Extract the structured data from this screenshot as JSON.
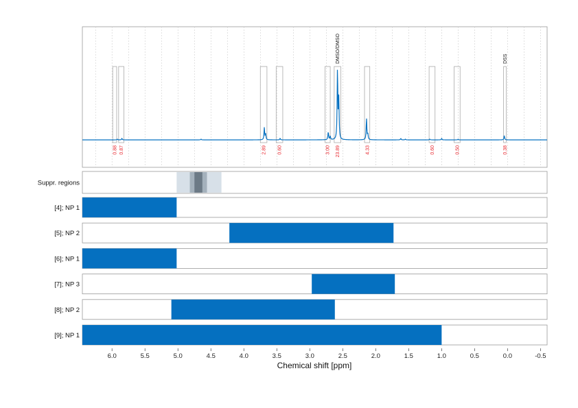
{
  "chart_data": {
    "type": "spectrum",
    "xlabel": "Chemical shift [ppm]",
    "xlim": [
      6.45,
      -0.6
    ],
    "x_ticks": [
      "6.0",
      "5.5",
      "5.0",
      "4.5",
      "4.0",
      "3.5",
      "3.0",
      "2.5",
      "2.0",
      "1.5",
      "1.0",
      "0.5",
      "0.0",
      "-0.5"
    ],
    "x_tick_values": [
      6.0,
      5.5,
      5.0,
      4.5,
      4.0,
      3.5,
      3.0,
      2.5,
      2.0,
      1.5,
      1.0,
      0.5,
      0.0,
      -0.5
    ],
    "spectrum": {
      "peaks": [
        {
          "ppm": 5.92,
          "height": 0.01
        },
        {
          "ppm": 5.85,
          "height": 0.02
        },
        {
          "ppm": 4.65,
          "height": 0.01
        },
        {
          "ppm": 3.69,
          "height": 0.17
        },
        {
          "ppm": 3.67,
          "height": 0.08
        },
        {
          "ppm": 3.45,
          "height": 0.02
        },
        {
          "ppm": 2.72,
          "height": 0.11
        },
        {
          "ppm": 2.69,
          "height": 0.05
        },
        {
          "ppm": 2.58,
          "height": 0.98
        },
        {
          "ppm": 2.56,
          "height": 0.55
        },
        {
          "ppm": 2.14,
          "height": 0.3
        },
        {
          "ppm": 2.12,
          "height": 0.08
        },
        {
          "ppm": 1.62,
          "height": 0.02
        },
        {
          "ppm": 1.55,
          "height": 0.01
        },
        {
          "ppm": 1.18,
          "height": 0.01
        },
        {
          "ppm": 1.0,
          "height": 0.02
        },
        {
          "ppm": 0.75,
          "height": 0.01
        },
        {
          "ppm": 0.05,
          "height": 0.06
        }
      ]
    },
    "boxes": [
      {
        "from": 5.99,
        "to": 5.93,
        "label": "0.88"
      },
      {
        "from": 5.9,
        "to": 5.82,
        "label": "0.87"
      },
      {
        "from": 3.75,
        "to": 3.65,
        "label": "2.89"
      },
      {
        "from": 3.51,
        "to": 3.41,
        "label": "0.60"
      },
      {
        "from": 2.77,
        "to": 2.69,
        "label": "3.00"
      },
      {
        "from": 2.63,
        "to": 2.53,
        "label": "23.89",
        "top_label": "DMSO/DMSO"
      },
      {
        "from": 2.17,
        "to": 2.09,
        "label": "4.33"
      },
      {
        "from": 1.19,
        "to": 1.1,
        "label": "0.60"
      },
      {
        "from": 0.81,
        "to": 0.72,
        "label": "0.50"
      },
      {
        "from": 0.06,
        "to": 0.02,
        "label": "0.38",
        "top_label": "DSS"
      }
    ],
    "suppression": {
      "label": "Suppr. regions",
      "regions": [
        {
          "from": 5.02,
          "to": 4.34,
          "shade": "#d7e0e8"
        },
        {
          "from": 4.82,
          "to": 4.56,
          "shade": "#a4b1bc"
        },
        {
          "from": 4.75,
          "to": 4.63,
          "shade": "#6c7a86"
        }
      ]
    },
    "tracks": [
      {
        "label": "[4]; NP 1",
        "from": 6.45,
        "to": 5.02
      },
      {
        "label": "[5]; NP 2",
        "from": 4.22,
        "to": 1.73
      },
      {
        "label": "[6]; NP 1",
        "from": 6.45,
        "to": 5.02
      },
      {
        "label": "[7]; NP 3",
        "from": 2.97,
        "to": 1.71
      },
      {
        "label": "[8]; NP 2",
        "from": 5.1,
        "to": 2.62
      },
      {
        "label": "[9]; NP 1",
        "from": 6.45,
        "to": 1.0
      }
    ],
    "colors": {
      "bar": "#0570c0",
      "spectrum": "#0570c0",
      "label": "#e8262d",
      "frame": "#9a9a9a",
      "grid": "#cccccc"
    }
  }
}
